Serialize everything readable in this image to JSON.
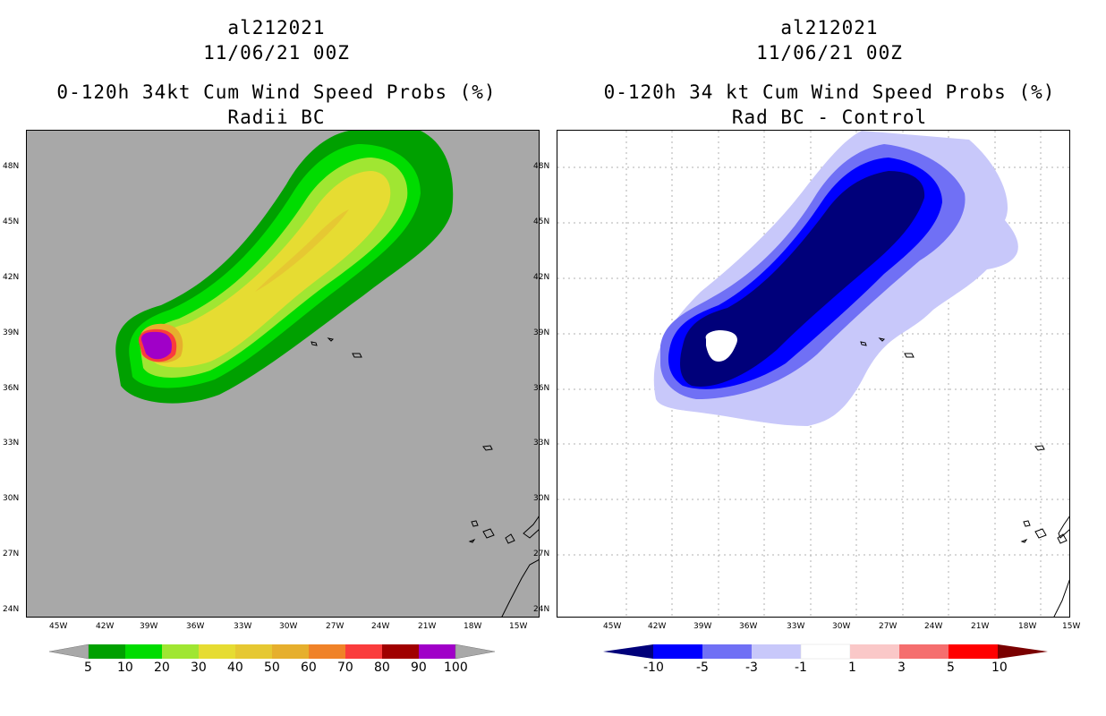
{
  "left_panel": {
    "title": [
      "al212021",
      "11/06/21 00Z",
      "0-120h 34kt Cum Wind Speed Probs (%)",
      "Radii BC"
    ],
    "colorbar": {
      "labels": [
        "5",
        "10",
        "20",
        "30",
        "40",
        "50",
        "60",
        "70",
        "80",
        "90",
        "100"
      ],
      "colors": [
        "#00a000",
        "#00dc00",
        "#a0e632",
        "#e6dc32",
        "#e6c832",
        "#e6af2d",
        "#f08228",
        "#fa3c3c",
        "#a00000",
        "#a000c8"
      ],
      "under_color": "#a8a8a8",
      "over_color": "#a8a8a8"
    },
    "background_color": "#a8a8a8"
  },
  "right_panel": {
    "title": [
      "al212021",
      "11/06/21 00Z",
      "0-120h 34 kt Cum Wind Speed Probs (%)",
      "Rad BC - Control"
    ],
    "colorbar": {
      "labels": [
        "-10",
        "-5",
        "-3",
        "-1",
        "1",
        "3",
        "5",
        "10"
      ],
      "colors": [
        "#0000ff",
        "#7070f5",
        "#c8c8fa",
        "#ffffff",
        "#fac8c8",
        "#f56e6e",
        "#ff0000"
      ],
      "under_color": "#00007a",
      "over_color": "#7a0000"
    },
    "background_color": "#ffffff"
  },
  "map": {
    "lat_labels": [
      "48N",
      "45N",
      "42N",
      "39N",
      "36N",
      "33N",
      "30N",
      "27N",
      "24N"
    ],
    "lon_labels": [
      "45W",
      "42W",
      "39W",
      "36W",
      "33W",
      "30W",
      "27W",
      "24W",
      "21W",
      "18W",
      "15W"
    ]
  },
  "contour_colors": {
    "left": [
      "#00a000",
      "#00dc00",
      "#a0e632",
      "#e6dc32",
      "#e6c832",
      "#a000c8",
      "#fa3c3c",
      "#e6af2d"
    ],
    "right": [
      "#c8c8fa",
      "#7070f5",
      "#0000ff",
      "#00007a"
    ]
  }
}
